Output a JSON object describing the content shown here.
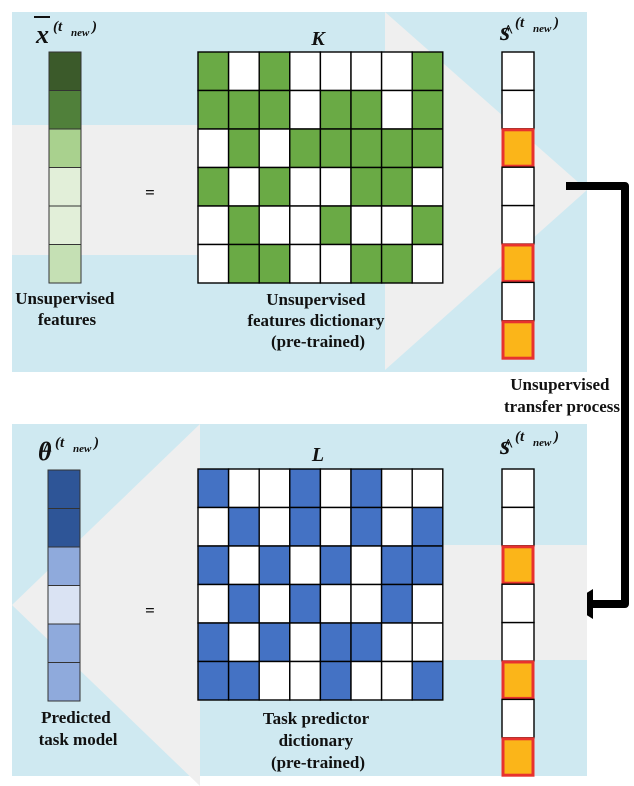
{
  "colors": {
    "panel_bg": "#cfe9f1",
    "arrow_bg": "#efefef",
    "green": "#6aaa45",
    "blue": "#4472c4",
    "orange": "#fbb519",
    "red": "#e8322e"
  },
  "top_panel": {
    "vector_symbol": "x",
    "vector_superscript": "(t",
    "vector_sub": "new",
    "vector_close": ")",
    "vector_colors": [
      "#3b5a2a",
      "#50803a",
      "#a9d18e",
      "#e2efd9",
      "#e2efd9",
      "#c5e0b4"
    ],
    "equals": "=",
    "matrix_symbol": "K",
    "matrix": [
      [
        1,
        0,
        1,
        0,
        0,
        0,
        0,
        1
      ],
      [
        1,
        1,
        1,
        0,
        1,
        1,
        0,
        1
      ],
      [
        0,
        1,
        0,
        1,
        1,
        1,
        1,
        1
      ],
      [
        1,
        0,
        1,
        0,
        0,
        1,
        1,
        0
      ],
      [
        0,
        1,
        0,
        0,
        1,
        0,
        0,
        1
      ],
      [
        0,
        1,
        1,
        0,
        0,
        1,
        1,
        0
      ]
    ],
    "s_symbol": "s",
    "s_superscript": "(t",
    "s_sub": "new",
    "s_close": ")",
    "s_active": [
      0,
      0,
      1,
      0,
      0,
      1,
      0,
      1
    ],
    "vector_caption": [
      "Unsupervised",
      "features"
    ],
    "matrix_caption": [
      "Unsupervised",
      "features dictionary",
      "(pre-trained)"
    ]
  },
  "transfer_label": [
    "Unsupervised",
    "transfer process"
  ],
  "bottom_panel": {
    "vector_symbol": "θ",
    "vector_superscript": "(t",
    "vector_sub": "new",
    "vector_close": ")",
    "vector_colors": [
      "#2e5597",
      "#2e5597",
      "#8faadc",
      "#dae3f3",
      "#8faadc",
      "#8faadc"
    ],
    "equals": "=",
    "matrix_symbol": "L",
    "matrix": [
      [
        1,
        0,
        0,
        1,
        0,
        1,
        0,
        0
      ],
      [
        0,
        1,
        0,
        1,
        0,
        1,
        0,
        1
      ],
      [
        1,
        0,
        1,
        0,
        1,
        0,
        1,
        1
      ],
      [
        0,
        1,
        0,
        1,
        0,
        0,
        1,
        0
      ],
      [
        1,
        0,
        1,
        0,
        1,
        1,
        0,
        0
      ],
      [
        1,
        1,
        0,
        0,
        1,
        0,
        0,
        1
      ]
    ],
    "s_symbol": "s",
    "s_superscript": "(t",
    "s_sub": "new",
    "s_close": ")",
    "s_active": [
      0,
      0,
      1,
      0,
      0,
      1,
      0,
      1
    ],
    "vector_caption": [
      "Predicted",
      "task model"
    ],
    "matrix_caption": [
      "Task predictor",
      "dictionary",
      "(pre-trained)"
    ]
  }
}
